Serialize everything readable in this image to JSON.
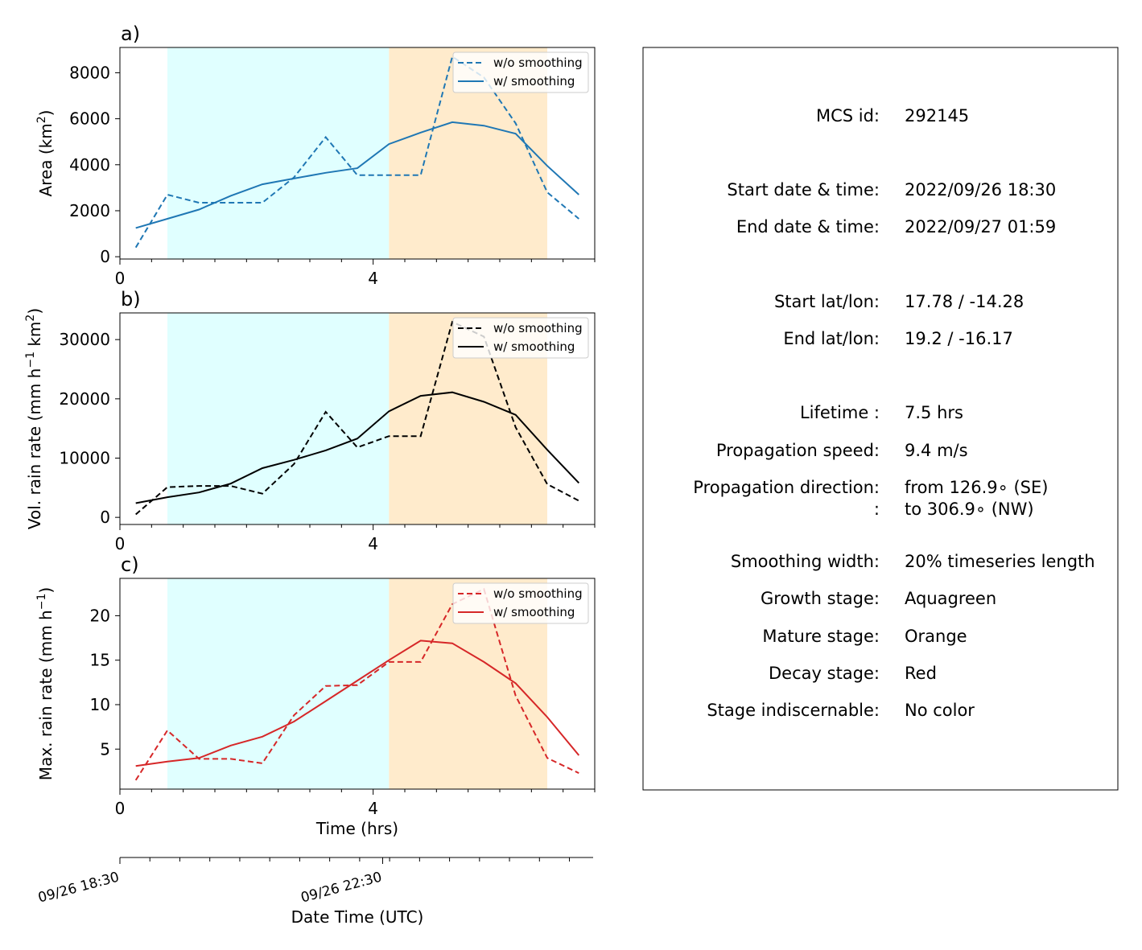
{
  "chart_data": [
    {
      "type": "line",
      "panel": "a)",
      "ylabel": "Area  (km",
      "ylabel_sup": "2",
      "ylabel_end": ")",
      "x": [
        0.25,
        0.75,
        1.25,
        1.75,
        2.25,
        2.75,
        3.25,
        3.75,
        4.25,
        4.75,
        5.25,
        5.75,
        6.25,
        6.75,
        7.25
      ],
      "xticks": [
        {
          "v": 0,
          "label": "0"
        },
        {
          "v": 4,
          "label": "4"
        }
      ],
      "xlim": [
        0,
        7.5
      ],
      "yticks": [
        0,
        2000,
        4000,
        6000,
        8000
      ],
      "ylim": [
        -100,
        9100
      ],
      "color": "#1f77b4",
      "legend_position": "top-right",
      "series": [
        {
          "name": "w/o smoothing",
          "style": "dashed",
          "values": [
            400,
            2700,
            2350,
            2350,
            2350,
            3450,
            5200,
            3550,
            3550,
            3550,
            8700,
            7800,
            5800,
            2800,
            1650
          ]
        },
        {
          "name": "w/ smoothing",
          "style": "solid",
          "values": [
            1250,
            1650,
            2050,
            2650,
            3150,
            3400,
            3650,
            3850,
            4900,
            5400,
            5850,
            5700,
            5350,
            3950,
            2700
          ]
        }
      ]
    },
    {
      "type": "line",
      "panel": "b)",
      "ylabel": "Vol. rain rate (mm h",
      "ylabel_sup": "−1",
      "ylabel_mid": " km",
      "ylabel_sup2": "2",
      "ylabel_end": ")",
      "x": [
        0.25,
        0.75,
        1.25,
        1.75,
        2.25,
        2.75,
        3.25,
        3.75,
        4.25,
        4.75,
        5.25,
        5.75,
        6.25,
        6.75,
        7.25
      ],
      "xticks": [
        {
          "v": 0,
          "label": "0"
        },
        {
          "v": 4,
          "label": "4"
        }
      ],
      "xlim": [
        0,
        7.5
      ],
      "yticks": [
        0,
        10000,
        20000,
        30000
      ],
      "ylim": [
        -1200,
        34500
      ],
      "color": "#000000",
      "legend_position": "top-right",
      "series": [
        {
          "name": "w/o smoothing",
          "style": "dashed",
          "values": [
            500,
            5100,
            5300,
            5300,
            4000,
            9000,
            17800,
            11800,
            13700,
            13700,
            33000,
            30500,
            15200,
            5600,
            2800
          ]
        },
        {
          "name": "w/ smoothing",
          "style": "solid",
          "values": [
            2400,
            3400,
            4200,
            5700,
            8300,
            9700,
            11300,
            13300,
            17900,
            20500,
            21100,
            19500,
            17300,
            11400,
            5800
          ]
        }
      ]
    },
    {
      "type": "line",
      "panel": "c)",
      "ylabel": "Max. rain rate  (mm h",
      "ylabel_sup": "−1",
      "ylabel_end": ")",
      "xlabel": "Time (hrs)",
      "x": [
        0.25,
        0.75,
        1.25,
        1.75,
        2.25,
        2.75,
        3.25,
        3.75,
        4.25,
        4.75,
        5.25,
        5.75,
        6.25,
        6.75,
        7.25
      ],
      "xticks": [
        {
          "v": 0,
          "label": "0"
        },
        {
          "v": 4,
          "label": "4"
        }
      ],
      "xlim": [
        0,
        7.5
      ],
      "yticks": [
        5,
        10,
        15,
        20
      ],
      "ylim": [
        0.5,
        24.2
      ],
      "color": "#d62728",
      "legend_position": "top-right",
      "series": [
        {
          "name": "w/o smoothing",
          "style": "dashed",
          "values": [
            1.5,
            7.1,
            3.9,
            3.9,
            3.4,
            8.8,
            12.1,
            12.2,
            14.8,
            14.8,
            21.3,
            23.0,
            11.0,
            4.0,
            2.3
          ]
        },
        {
          "name": "w/ smoothing",
          "style": "solid",
          "values": [
            3.1,
            3.6,
            4.0,
            5.4,
            6.4,
            8.1,
            10.4,
            12.7,
            15.0,
            17.2,
            16.9,
            14.8,
            12.4,
            8.6,
            4.3
          ]
        }
      ]
    }
  ],
  "stages": [
    {
      "start": 0.75,
      "end": 4.25,
      "color": "#e0ffff"
    },
    {
      "start": 4.25,
      "end": 6.75,
      "color": "#ffebcc"
    }
  ],
  "datetime_axis": {
    "label": "Date Time (UTC)",
    "ticks": [
      {
        "v": 0,
        "label": "09/26 18:30"
      },
      {
        "v": 4.15,
        "label": "09/26 22:30"
      }
    ]
  },
  "info": [
    {
      "label": "MCS id:",
      "value": "292145"
    },
    {
      "label": "Start date & time:",
      "value": "2022/09/26 18:30"
    },
    {
      "label": "End date & time:",
      "value": "2022/09/27 01:59"
    },
    {
      "label": "Start lat/lon:",
      "value": "17.78 / -14.28"
    },
    {
      "label": "End lat/lon:",
      "value": "19.2 / -16.17"
    },
    {
      "label": "Lifetime :",
      "value": "7.5 hrs"
    },
    {
      "label": "Propagation speed:",
      "value": "9.4 m/s"
    },
    {
      "label": "Propagation direction:",
      "value": "from 126.9∘ (SE)"
    },
    {
      "label": ":",
      "value": "to   306.9∘ (NW)"
    },
    {
      "label": "Smoothing width:",
      "value": "20% timeseries length"
    },
    {
      "label": "Growth stage:",
      "value": "Aquagreen"
    },
    {
      "label": "Mature stage:",
      "value": "Orange"
    },
    {
      "label": "Decay stage:",
      "value": "Red"
    },
    {
      "label": "Stage indiscernable:",
      "value": "No color"
    }
  ]
}
